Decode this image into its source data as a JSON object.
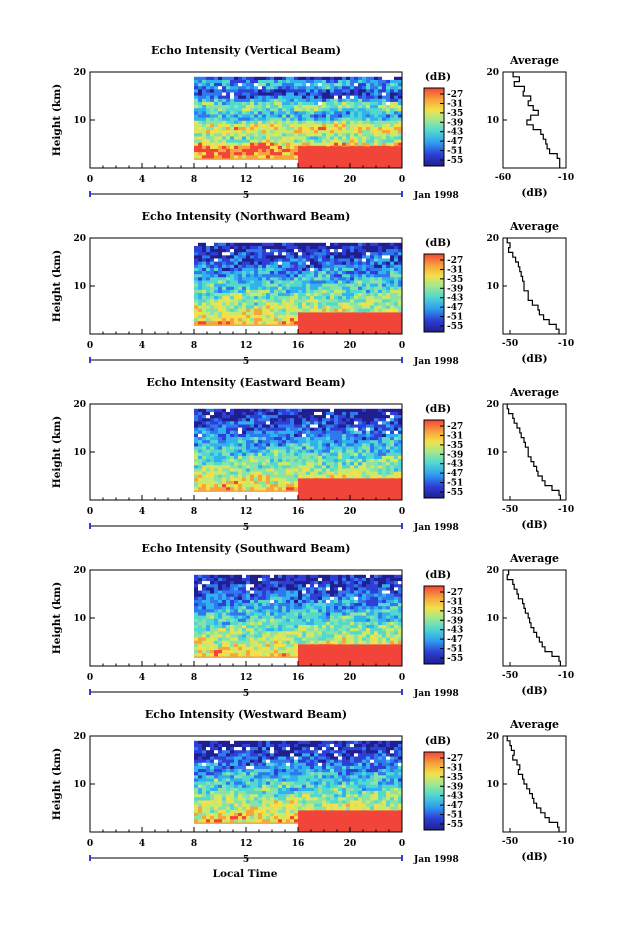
{
  "chart_data": [
    {
      "type": "heatmap",
      "title": "Echo Intensity (Vertical Beam)",
      "xlabel": "Local Time",
      "ylabel": "Height (km)",
      "x_ticks": [
        "0",
        "4",
        "8",
        "12",
        "16",
        "20",
        "0"
      ],
      "y_ticks": [
        "20",
        "10"
      ],
      "xlim": [
        0,
        24
      ],
      "ylim": [
        0,
        20
      ],
      "date_label": "Jan 1998",
      "day_label": "5",
      "data_start_hour": 8,
      "strong_echo": {
        "from_hour": 16,
        "top_km": 4.5
      },
      "colorbar": {
        "label": "(dB)",
        "ticks": [
          "-27",
          "-31",
          "-35",
          "-39",
          "-43",
          "-47",
          "-51",
          "-55"
        ]
      },
      "profile": {
        "title": "Average",
        "xlabel": "(dB)",
        "x_ticks": [
          "-60",
          "-10"
        ],
        "y_ticks": [
          "20",
          "10"
        ],
        "xlim": [
          -60,
          -10
        ],
        "height_km": [
          20,
          19,
          18,
          17,
          16,
          15,
          14,
          13,
          12,
          11,
          10,
          9,
          8,
          7,
          6,
          5,
          4,
          3,
          2,
          1
        ],
        "values_db": [
          -52,
          -47,
          -51,
          -43,
          -44,
          -38,
          -40,
          -36,
          -32,
          -38,
          -41,
          -36,
          -30,
          -28,
          -26,
          -25,
          -23,
          -17,
          -15,
          -15
        ]
      }
    },
    {
      "type": "heatmap",
      "title": "Echo Intensity (Northward Beam)",
      "xlabel": "Local Time",
      "ylabel": "Height (km)",
      "x_ticks": [
        "0",
        "4",
        "8",
        "12",
        "16",
        "20",
        "0"
      ],
      "y_ticks": [
        "20",
        "10"
      ],
      "xlim": [
        0,
        24
      ],
      "ylim": [
        0,
        20
      ],
      "date_label": "Jan 1998",
      "day_label": "5",
      "data_start_hour": 8,
      "strong_echo": {
        "from_hour": 16,
        "top_km": 4.5
      },
      "colorbar": {
        "label": "(dB)",
        "ticks": [
          "-27",
          "-31",
          "-35",
          "-39",
          "-43",
          "-47",
          "-51",
          "-55"
        ]
      },
      "profile": {
        "title": "Average",
        "xlabel": "(dB)",
        "x_ticks": [
          "-50",
          "-10"
        ],
        "y_ticks": [
          "20",
          "10"
        ],
        "xlim": [
          -55,
          -10
        ],
        "height_km": [
          20,
          19,
          18,
          17,
          16,
          15,
          14,
          13,
          12,
          11,
          10,
          9,
          8,
          7,
          6,
          5,
          4,
          3,
          2,
          1
        ],
        "values_db": [
          -52,
          -50,
          -51,
          -48,
          -46,
          -44,
          -43,
          -42,
          -41,
          -40,
          -40,
          -37,
          -37,
          -34,
          -30,
          -29,
          -26,
          -22,
          -17,
          -15
        ]
      }
    },
    {
      "type": "heatmap",
      "title": "Echo Intensity (Eastward Beam)",
      "xlabel": "Local Time",
      "ylabel": "Height (km)",
      "x_ticks": [
        "0",
        "4",
        "8",
        "12",
        "16",
        "20",
        "0"
      ],
      "y_ticks": [
        "20",
        "10"
      ],
      "xlim": [
        0,
        24
      ],
      "ylim": [
        0,
        20
      ],
      "date_label": "Jan 1998",
      "day_label": "5",
      "data_start_hour": 8,
      "strong_echo": {
        "from_hour": 16,
        "top_km": 4.5
      },
      "colorbar": {
        "label": "(dB)",
        "ticks": [
          "-27",
          "-31",
          "-35",
          "-39",
          "-43",
          "-47",
          "-51",
          "-55"
        ]
      },
      "profile": {
        "title": "Average",
        "xlabel": "(dB)",
        "x_ticks": [
          "-50",
          "-10"
        ],
        "y_ticks": [
          "20",
          "10"
        ],
        "xlim": [
          -55,
          -10
        ],
        "height_km": [
          20,
          19,
          18,
          17,
          16,
          15,
          14,
          13,
          12,
          11,
          10,
          9,
          8,
          7,
          6,
          5,
          4,
          3,
          2,
          1
        ],
        "values_db": [
          -52,
          -51,
          -48,
          -47,
          -45,
          -43,
          -42,
          -40,
          -39,
          -37,
          -37,
          -35,
          -33,
          -31,
          -30,
          -27,
          -25,
          -20,
          -15,
          -14
        ]
      }
    },
    {
      "type": "heatmap",
      "title": "Echo Intensity (Southward Beam)",
      "xlabel": "Local Time",
      "ylabel": "Height (km)",
      "x_ticks": [
        "0",
        "4",
        "8",
        "12",
        "16",
        "20",
        "0"
      ],
      "y_ticks": [
        "20",
        "10"
      ],
      "xlim": [
        0,
        24
      ],
      "ylim": [
        0,
        20
      ],
      "date_label": "Jan 1998",
      "day_label": "5",
      "data_start_hour": 8,
      "strong_echo": {
        "from_hour": 16,
        "top_km": 4.5
      },
      "colorbar": {
        "label": "(dB)",
        "ticks": [
          "-27",
          "-31",
          "-35",
          "-39",
          "-43",
          "-47",
          "-51",
          "-55"
        ]
      },
      "profile": {
        "title": "Average",
        "xlabel": "(dB)",
        "x_ticks": [
          "-50",
          "-10"
        ],
        "y_ticks": [
          "20",
          "10"
        ],
        "xlim": [
          -55,
          -10
        ],
        "height_km": [
          20,
          19,
          18,
          17,
          16,
          15,
          14,
          13,
          12,
          11,
          10,
          9,
          8,
          7,
          6,
          5,
          4,
          3,
          2,
          1
        ],
        "values_db": [
          -51,
          -52,
          -48,
          -47,
          -45,
          -44,
          -41,
          -40,
          -39,
          -37,
          -36,
          -35,
          -33,
          -31,
          -29,
          -27,
          -25,
          -20,
          -15,
          -14
        ]
      }
    },
    {
      "type": "heatmap",
      "title": "Echo Intensity (Westward Beam)",
      "xlabel": "Local Time",
      "ylabel": "Height (km)",
      "x_ticks": [
        "0",
        "4",
        "8",
        "12",
        "16",
        "20",
        "0"
      ],
      "y_ticks": [
        "20",
        "10"
      ],
      "xlim": [
        0,
        24
      ],
      "ylim": [
        0,
        20
      ],
      "date_label": "Jan 1998",
      "day_label": "5",
      "data_start_hour": 8,
      "strong_echo": {
        "from_hour": 16,
        "top_km": 4.5
      },
      "colorbar": {
        "label": "(dB)",
        "ticks": [
          "-27",
          "-31",
          "-35",
          "-39",
          "-43",
          "-47",
          "-51",
          "-55"
        ]
      },
      "profile": {
        "title": "Average",
        "xlabel": "(dB)",
        "x_ticks": [
          "-50",
          "-10"
        ],
        "y_ticks": [
          "20",
          "10"
        ],
        "xlim": [
          -55,
          -10
        ],
        "height_km": [
          20,
          19,
          18,
          17,
          16,
          15,
          14,
          13,
          12,
          11,
          10,
          9,
          8,
          7,
          6,
          5,
          4,
          3,
          2,
          1
        ],
        "values_db": [
          -52,
          -50,
          -49,
          -47,
          -48,
          -45,
          -43,
          -44,
          -41,
          -40,
          -38,
          -36,
          -34,
          -33,
          -31,
          -28,
          -25,
          -22,
          -16,
          -15
        ]
      }
    }
  ],
  "colormap": [
    "#1f1f8f",
    "#2d3fd6",
    "#2f78ee",
    "#31b2f0",
    "#52d8cf",
    "#88e3a8",
    "#c8ea6c",
    "#f3e04a",
    "#f6a43c",
    "#f2453a"
  ],
  "footer": {
    "xlabel": "Local Time"
  }
}
